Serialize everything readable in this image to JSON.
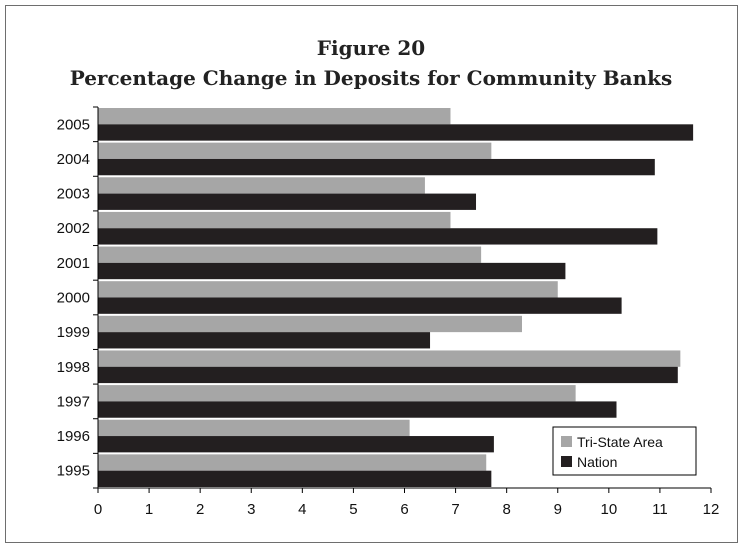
{
  "chart_data": {
    "type": "bar",
    "orientation": "horizontal",
    "title": "Figure 20",
    "subtitle": "Percentage Change in Deposits for Community Banks",
    "xlabel": "",
    "ylabel": "",
    "xlim": [
      0,
      12
    ],
    "x_ticks": [
      "0",
      "1",
      "2",
      "3",
      "4",
      "5",
      "6",
      "7",
      "8",
      "9",
      "10",
      "11",
      "12"
    ],
    "grid": false,
    "legend_position": "bottom-right",
    "categories": [
      "2005",
      "2004",
      "2003",
      "2002",
      "2001",
      "2000",
      "1999",
      "1998",
      "1997",
      "1996",
      "1995"
    ],
    "series": [
      {
        "name": "Tri-State Area",
        "color": "#a6a6a6",
        "values": [
          6.9,
          7.7,
          6.4,
          6.9,
          7.5,
          9.0,
          8.3,
          11.4,
          9.35,
          6.1,
          7.6
        ]
      },
      {
        "name": "Nation",
        "color": "#231f20",
        "values": [
          11.65,
          10.9,
          7.4,
          10.95,
          9.15,
          10.25,
          6.5,
          11.35,
          10.15,
          7.75,
          7.7
        ]
      }
    ]
  }
}
